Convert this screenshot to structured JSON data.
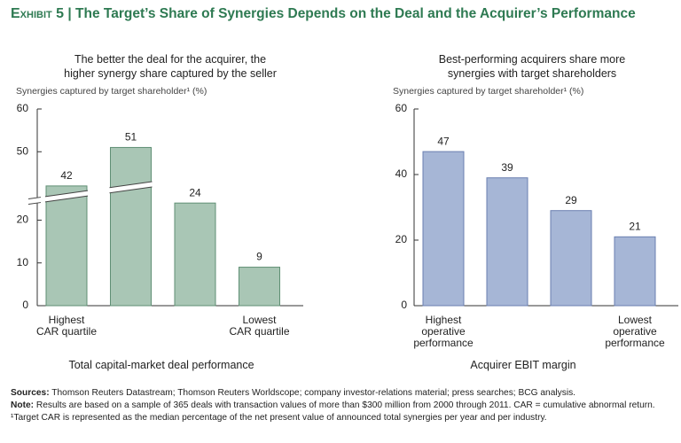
{
  "exhibit": "Exhibit 5",
  "title": "The Target’s Share of Synergies Depends on the Deal and the Acquirer’s Performance",
  "chart_data": [
    {
      "type": "bar",
      "subtitle": "The better the deal for the acquirer, the\nhigher synergy share captured by the seller",
      "y_label": "Synergies captured by target shareholder¹ (%)",
      "x_label": "Total capital-market deal performance",
      "categories": [
        "Highest\nCAR quartile",
        null,
        null,
        "Lowest\nCAR quartile"
      ],
      "values": [
        42,
        51,
        24,
        9
      ],
      "color": "#a9c6b5",
      "edge_color": "#5f8f74",
      "ylim": [
        0,
        60
      ],
      "ybreak": [
        26,
        40
      ],
      "yticks": [
        0,
        10,
        20,
        50,
        60
      ]
    },
    {
      "type": "bar",
      "subtitle": "Best-performing acquirers share more\nsynergies with target shareholders",
      "y_label": "Synergies captured by target shareholder¹ (%)",
      "x_label": "Acquirer EBIT margin",
      "categories": [
        "Highest\noperative\nperformance",
        null,
        null,
        "Lowest\noperative\nperformance"
      ],
      "values": [
        47,
        39,
        29,
        21
      ],
      "color": "#a6b6d6",
      "edge_color": "#6a7fb0",
      "ylim": [
        0,
        60
      ],
      "yticks": [
        0,
        20,
        40,
        60
      ]
    }
  ],
  "notes": [
    {
      "label": "Sources:",
      "text": "Thomson Reuters Datastream; Thomson Reuters Worldscope; company investor-relations material; press searches; BCG analysis."
    },
    {
      "label": "Note:",
      "text": "Results are based on a sample of 365 deals with transaction values of more than $300 million from 2000 through 2011. CAR = cumulative abnormal return."
    },
    {
      "label": null,
      "text": "¹Target CAR is represented as the median percentage of the net present value of announced total synergies per year and per industry."
    }
  ]
}
